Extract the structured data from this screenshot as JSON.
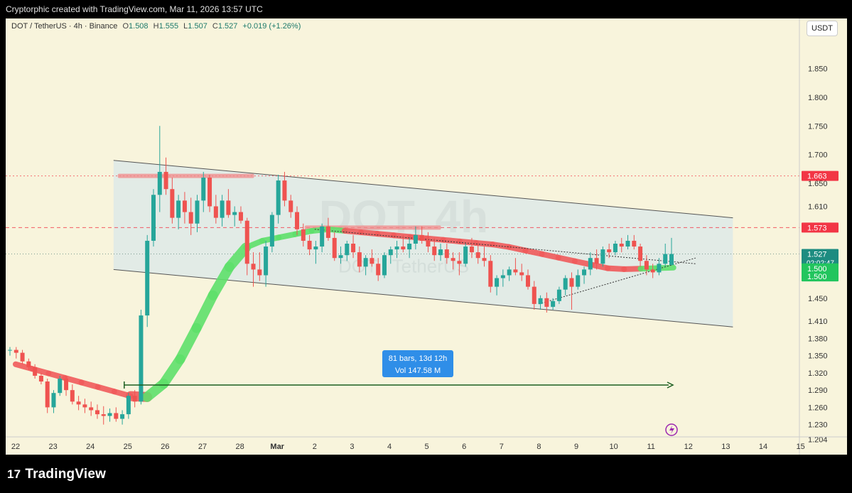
{
  "header": {
    "text": "Cryptorphic created with TradingView.com, Mar 11, 2026 13:57 UTC"
  },
  "legend": {
    "symbol": "DOT / TetherUS · 4h · Binance",
    "o_label": "O",
    "o": "1.508",
    "h_label": "H",
    "h": "1.555",
    "l_label": "L",
    "l": "1.507",
    "c_label": "C",
    "c": "1.527",
    "change": "+0.019 (+1.26%)"
  },
  "currency": "USDT",
  "watermark": {
    "line1": "DOT, 4h",
    "line2": "DOT / TetherUS"
  },
  "measure": {
    "line1": "81 bars, 13d 12h",
    "line2": "Vol 147.58 M"
  },
  "brand": {
    "logo_mark": "17",
    "name": "TradingView"
  },
  "colors": {
    "up": "#26a69a",
    "down": "#ef5350",
    "accent": "#2962ff",
    "background": "#f8f4dc"
  },
  "chart_data": {
    "type": "candlestick",
    "symbol": "DOT / TetherUS",
    "interval": "4h",
    "exchange": "Binance",
    "ylim": [
      1.19,
      1.9
    ],
    "y_ticks": [
      "1.850",
      "1.800",
      "1.750",
      "1.700",
      "1.650",
      "1.610",
      "1.570",
      "1.530",
      "1.490",
      "1.450",
      "1.410",
      "1.380",
      "1.350",
      "1.320",
      "1.290",
      "1.260",
      "1.230",
      "1.204"
    ],
    "x_ticks": [
      "22",
      "23",
      "24",
      "25",
      "26",
      "27",
      "28",
      "Mar",
      "2",
      "3",
      "4",
      "5",
      "6",
      "7",
      "8",
      "9",
      "10",
      "11",
      "12",
      "13",
      "14",
      "15"
    ],
    "price_labels": [
      {
        "value": "1.663",
        "color": "#f23645"
      },
      {
        "value": "1.573",
        "color": "#f23645"
      },
      {
        "value": "1.527",
        "sub": "02:02:47",
        "color": "#1d8c80"
      },
      {
        "value": "1.500",
        "color": "#22c55e"
      },
      {
        "value": "1.500",
        "color": "#22c55e"
      }
    ],
    "candles": [
      [
        1.36,
        1.365,
        1.35,
        1.36
      ],
      [
        1.36,
        1.365,
        1.345,
        1.355
      ],
      [
        1.355,
        1.36,
        1.335,
        1.34
      ],
      [
        1.34,
        1.345,
        1.325,
        1.33
      ],
      [
        1.33,
        1.335,
        1.31,
        1.315
      ],
      [
        1.315,
        1.32,
        1.3,
        1.305
      ],
      [
        1.305,
        1.31,
        1.25,
        1.26
      ],
      [
        1.26,
        1.29,
        1.25,
        1.285
      ],
      [
        1.285,
        1.315,
        1.28,
        1.31
      ],
      [
        1.31,
        1.315,
        1.28,
        1.29
      ],
      [
        1.29,
        1.3,
        1.265,
        1.27
      ],
      [
        1.27,
        1.28,
        1.255,
        1.265
      ],
      [
        1.265,
        1.275,
        1.25,
        1.26
      ],
      [
        1.26,
        1.27,
        1.245,
        1.255
      ],
      [
        1.255,
        1.265,
        1.24,
        1.248
      ],
      [
        1.248,
        1.262,
        1.23,
        1.245
      ],
      [
        1.245,
        1.258,
        1.235,
        1.25
      ],
      [
        1.25,
        1.26,
        1.235,
        1.24
      ],
      [
        1.24,
        1.255,
        1.23,
        1.248
      ],
      [
        1.248,
        1.285,
        1.24,
        1.28
      ],
      [
        1.28,
        1.29,
        1.26,
        1.27
      ],
      [
        1.27,
        1.43,
        1.265,
        1.42
      ],
      [
        1.42,
        1.56,
        1.4,
        1.55
      ],
      [
        1.55,
        1.64,
        1.54,
        1.63
      ],
      [
        1.63,
        1.75,
        1.6,
        1.67
      ],
      [
        1.67,
        1.695,
        1.63,
        1.64
      ],
      [
        1.64,
        1.66,
        1.58,
        1.59
      ],
      [
        1.59,
        1.63,
        1.57,
        1.62
      ],
      [
        1.62,
        1.635,
        1.58,
        1.6
      ],
      [
        1.6,
        1.625,
        1.56,
        1.58
      ],
      [
        1.58,
        1.63,
        1.565,
        1.62
      ],
      [
        1.62,
        1.67,
        1.6,
        1.66
      ],
      [
        1.66,
        1.665,
        1.6,
        1.61
      ],
      [
        1.61,
        1.63,
        1.58,
        1.59
      ],
      [
        1.59,
        1.63,
        1.575,
        1.62
      ],
      [
        1.62,
        1.64,
        1.59,
        1.595
      ],
      [
        1.595,
        1.61,
        1.575,
        1.6
      ],
      [
        1.6,
        1.61,
        1.58,
        1.585
      ],
      [
        1.585,
        1.59,
        1.49,
        1.51
      ],
      [
        1.51,
        1.53,
        1.47,
        1.5
      ],
      [
        1.5,
        1.53,
        1.48,
        1.49
      ],
      [
        1.49,
        1.55,
        1.47,
        1.54
      ],
      [
        1.54,
        1.6,
        1.53,
        1.595
      ],
      [
        1.595,
        1.665,
        1.58,
        1.655
      ],
      [
        1.655,
        1.67,
        1.61,
        1.62
      ],
      [
        1.62,
        1.63,
        1.59,
        1.6
      ],
      [
        1.6,
        1.61,
        1.56,
        1.57
      ],
      [
        1.57,
        1.58,
        1.54,
        1.55
      ],
      [
        1.55,
        1.56,
        1.525,
        1.535
      ],
      [
        1.535,
        1.55,
        1.51,
        1.54
      ],
      [
        1.54,
        1.58,
        1.53,
        1.575
      ],
      [
        1.575,
        1.59,
        1.55,
        1.555
      ],
      [
        1.555,
        1.565,
        1.515,
        1.52
      ],
      [
        1.52,
        1.54,
        1.51,
        1.525
      ],
      [
        1.525,
        1.55,
        1.515,
        1.545
      ],
      [
        1.545,
        1.56,
        1.52,
        1.53
      ],
      [
        1.53,
        1.54,
        1.495,
        1.505
      ],
      [
        1.505,
        1.525,
        1.49,
        1.52
      ],
      [
        1.52,
        1.535,
        1.505,
        1.51
      ],
      [
        1.51,
        1.52,
        1.48,
        1.49
      ],
      [
        1.49,
        1.53,
        1.485,
        1.525
      ],
      [
        1.525,
        1.54,
        1.51,
        1.535
      ],
      [
        1.535,
        1.55,
        1.52,
        1.54
      ],
      [
        1.54,
        1.56,
        1.53,
        1.535
      ],
      [
        1.535,
        1.555,
        1.52,
        1.545
      ],
      [
        1.545,
        1.575,
        1.535,
        1.56
      ],
      [
        1.56,
        1.575,
        1.545,
        1.55
      ],
      [
        1.55,
        1.565,
        1.53,
        1.54
      ],
      [
        1.54,
        1.555,
        1.515,
        1.525
      ],
      [
        1.525,
        1.545,
        1.515,
        1.535
      ],
      [
        1.535,
        1.545,
        1.51,
        1.52
      ],
      [
        1.52,
        1.53,
        1.5,
        1.515
      ],
      [
        1.515,
        1.53,
        1.49,
        1.51
      ],
      [
        1.51,
        1.545,
        1.505,
        1.54
      ],
      [
        1.54,
        1.555,
        1.52,
        1.53
      ],
      [
        1.53,
        1.545,
        1.51,
        1.52
      ],
      [
        1.52,
        1.54,
        1.505,
        1.515
      ],
      [
        1.515,
        1.525,
        1.46,
        1.47
      ],
      [
        1.47,
        1.49,
        1.455,
        1.485
      ],
      [
        1.485,
        1.5,
        1.47,
        1.49
      ],
      [
        1.49,
        1.505,
        1.48,
        1.5
      ],
      [
        1.5,
        1.52,
        1.49,
        1.495
      ],
      [
        1.495,
        1.51,
        1.48,
        1.49
      ],
      [
        1.49,
        1.5,
        1.465,
        1.47
      ],
      [
        1.47,
        1.48,
        1.43,
        1.44
      ],
      [
        1.44,
        1.455,
        1.43,
        1.45
      ],
      [
        1.45,
        1.46,
        1.425,
        1.435
      ],
      [
        1.435,
        1.45,
        1.43,
        1.445
      ],
      [
        1.445,
        1.47,
        1.44,
        1.465
      ],
      [
        1.465,
        1.49,
        1.455,
        1.485
      ],
      [
        1.485,
        1.495,
        1.43,
        1.47
      ],
      [
        1.47,
        1.5,
        1.465,
        1.49
      ],
      [
        1.49,
        1.505,
        1.475,
        1.5
      ],
      [
        1.5,
        1.53,
        1.49,
        1.52
      ],
      [
        1.52,
        1.535,
        1.5,
        1.51
      ],
      [
        1.51,
        1.54,
        1.505,
        1.535
      ],
      [
        1.535,
        1.545,
        1.52,
        1.53
      ],
      [
        1.53,
        1.55,
        1.525,
        1.545
      ],
      [
        1.545,
        1.555,
        1.53,
        1.54
      ],
      [
        1.54,
        1.56,
        1.535,
        1.55
      ],
      [
        1.55,
        1.56,
        1.535,
        1.54
      ],
      [
        1.54,
        1.545,
        1.505,
        1.515
      ],
      [
        1.515,
        1.525,
        1.49,
        1.5
      ],
      [
        1.5,
        1.51,
        1.485,
        1.495
      ],
      [
        1.495,
        1.52,
        1.49,
        1.51
      ],
      [
        1.51,
        1.545,
        1.505,
        1.527
      ],
      [
        1.508,
        1.555,
        1.507,
        1.527
      ]
    ],
    "channel": {
      "upper": [
        [
          "Feb 25",
          1.69
        ],
        [
          "Mar 13",
          1.59
        ]
      ],
      "lower": [
        [
          "Feb 25",
          1.5
        ],
        [
          "Mar 13",
          1.4
        ]
      ]
    },
    "resistance_zones": [
      {
        "from": "Feb 25",
        "to": "Feb 28",
        "value": 1.663
      },
      {
        "from": "Mar 2",
        "to": "Mar 5",
        "value": 1.573
      }
    ],
    "triangle": {
      "upper": [
        [
          "Mar 2",
          1.57
        ],
        [
          "Mar 12",
          1.51
        ]
      ],
      "lower": [
        [
          "Mar 8",
          1.44
        ],
        [
          "Mar 12",
          1.52
        ]
      ]
    },
    "measure_range": {
      "from": "Feb 25",
      "to": "Mar 11"
    }
  }
}
